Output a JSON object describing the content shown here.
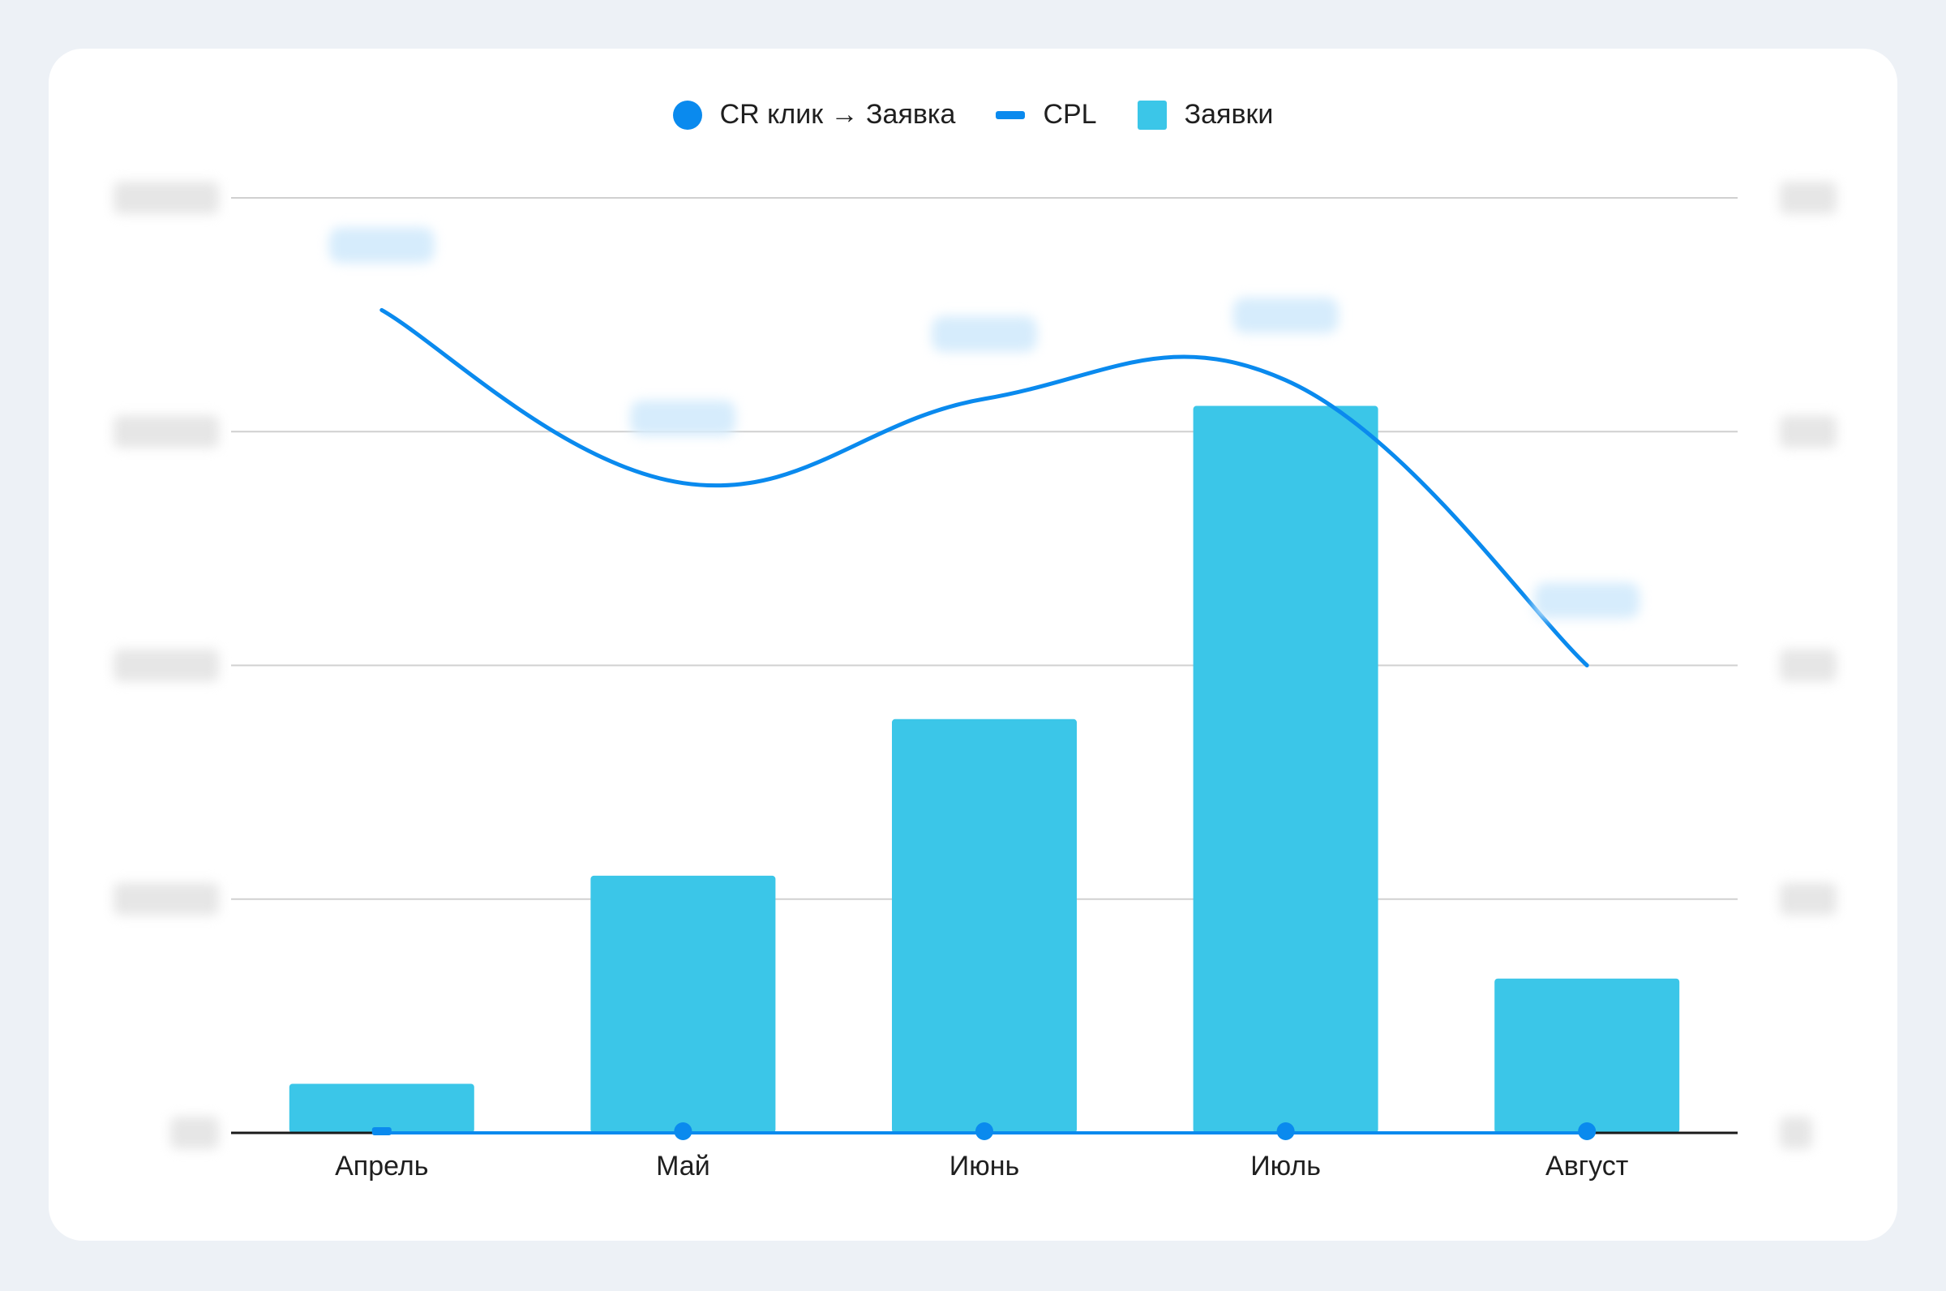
{
  "legend": {
    "cr_label": "CR клик → Заявка",
    "cpl_label": "CPL",
    "leads_label": "Заявки"
  },
  "colors": {
    "background": "#edf1f6",
    "card": "#ffffff",
    "bars": "#3bc6e8",
    "cpl_line": "#0a8aee",
    "cr_marker": "#0a8aee",
    "grid": "#d0d0d0",
    "axis": "#1a1a1a"
  },
  "chart_data": {
    "type": "bar",
    "categories": [
      "Апрель",
      "Май",
      "Июнь",
      "Июль",
      "Август"
    ],
    "series": [
      {
        "name": "Заявки",
        "type": "bar",
        "axis": "left",
        "values": [
          0.21,
          1.1,
          1.77,
          3.11,
          0.66
        ]
      },
      {
        "name": "CPL",
        "type": "line",
        "smooth": true,
        "axis": "right",
        "values": [
          3.52,
          2.78,
          3.14,
          3.22,
          2.0
        ]
      },
      {
        "name": "CR клик → Заявка",
        "type": "line",
        "marker": "circle",
        "axis": "right",
        "values": [
          0,
          0,
          0,
          0,
          0
        ]
      }
    ],
    "left_ylim": [
      0,
      4
    ],
    "right_ylim": [
      0,
      4
    ],
    "grid": true,
    "legend_position": "top-center",
    "notes": "Y-axis tick labels and line data labels are blurred in the original."
  }
}
